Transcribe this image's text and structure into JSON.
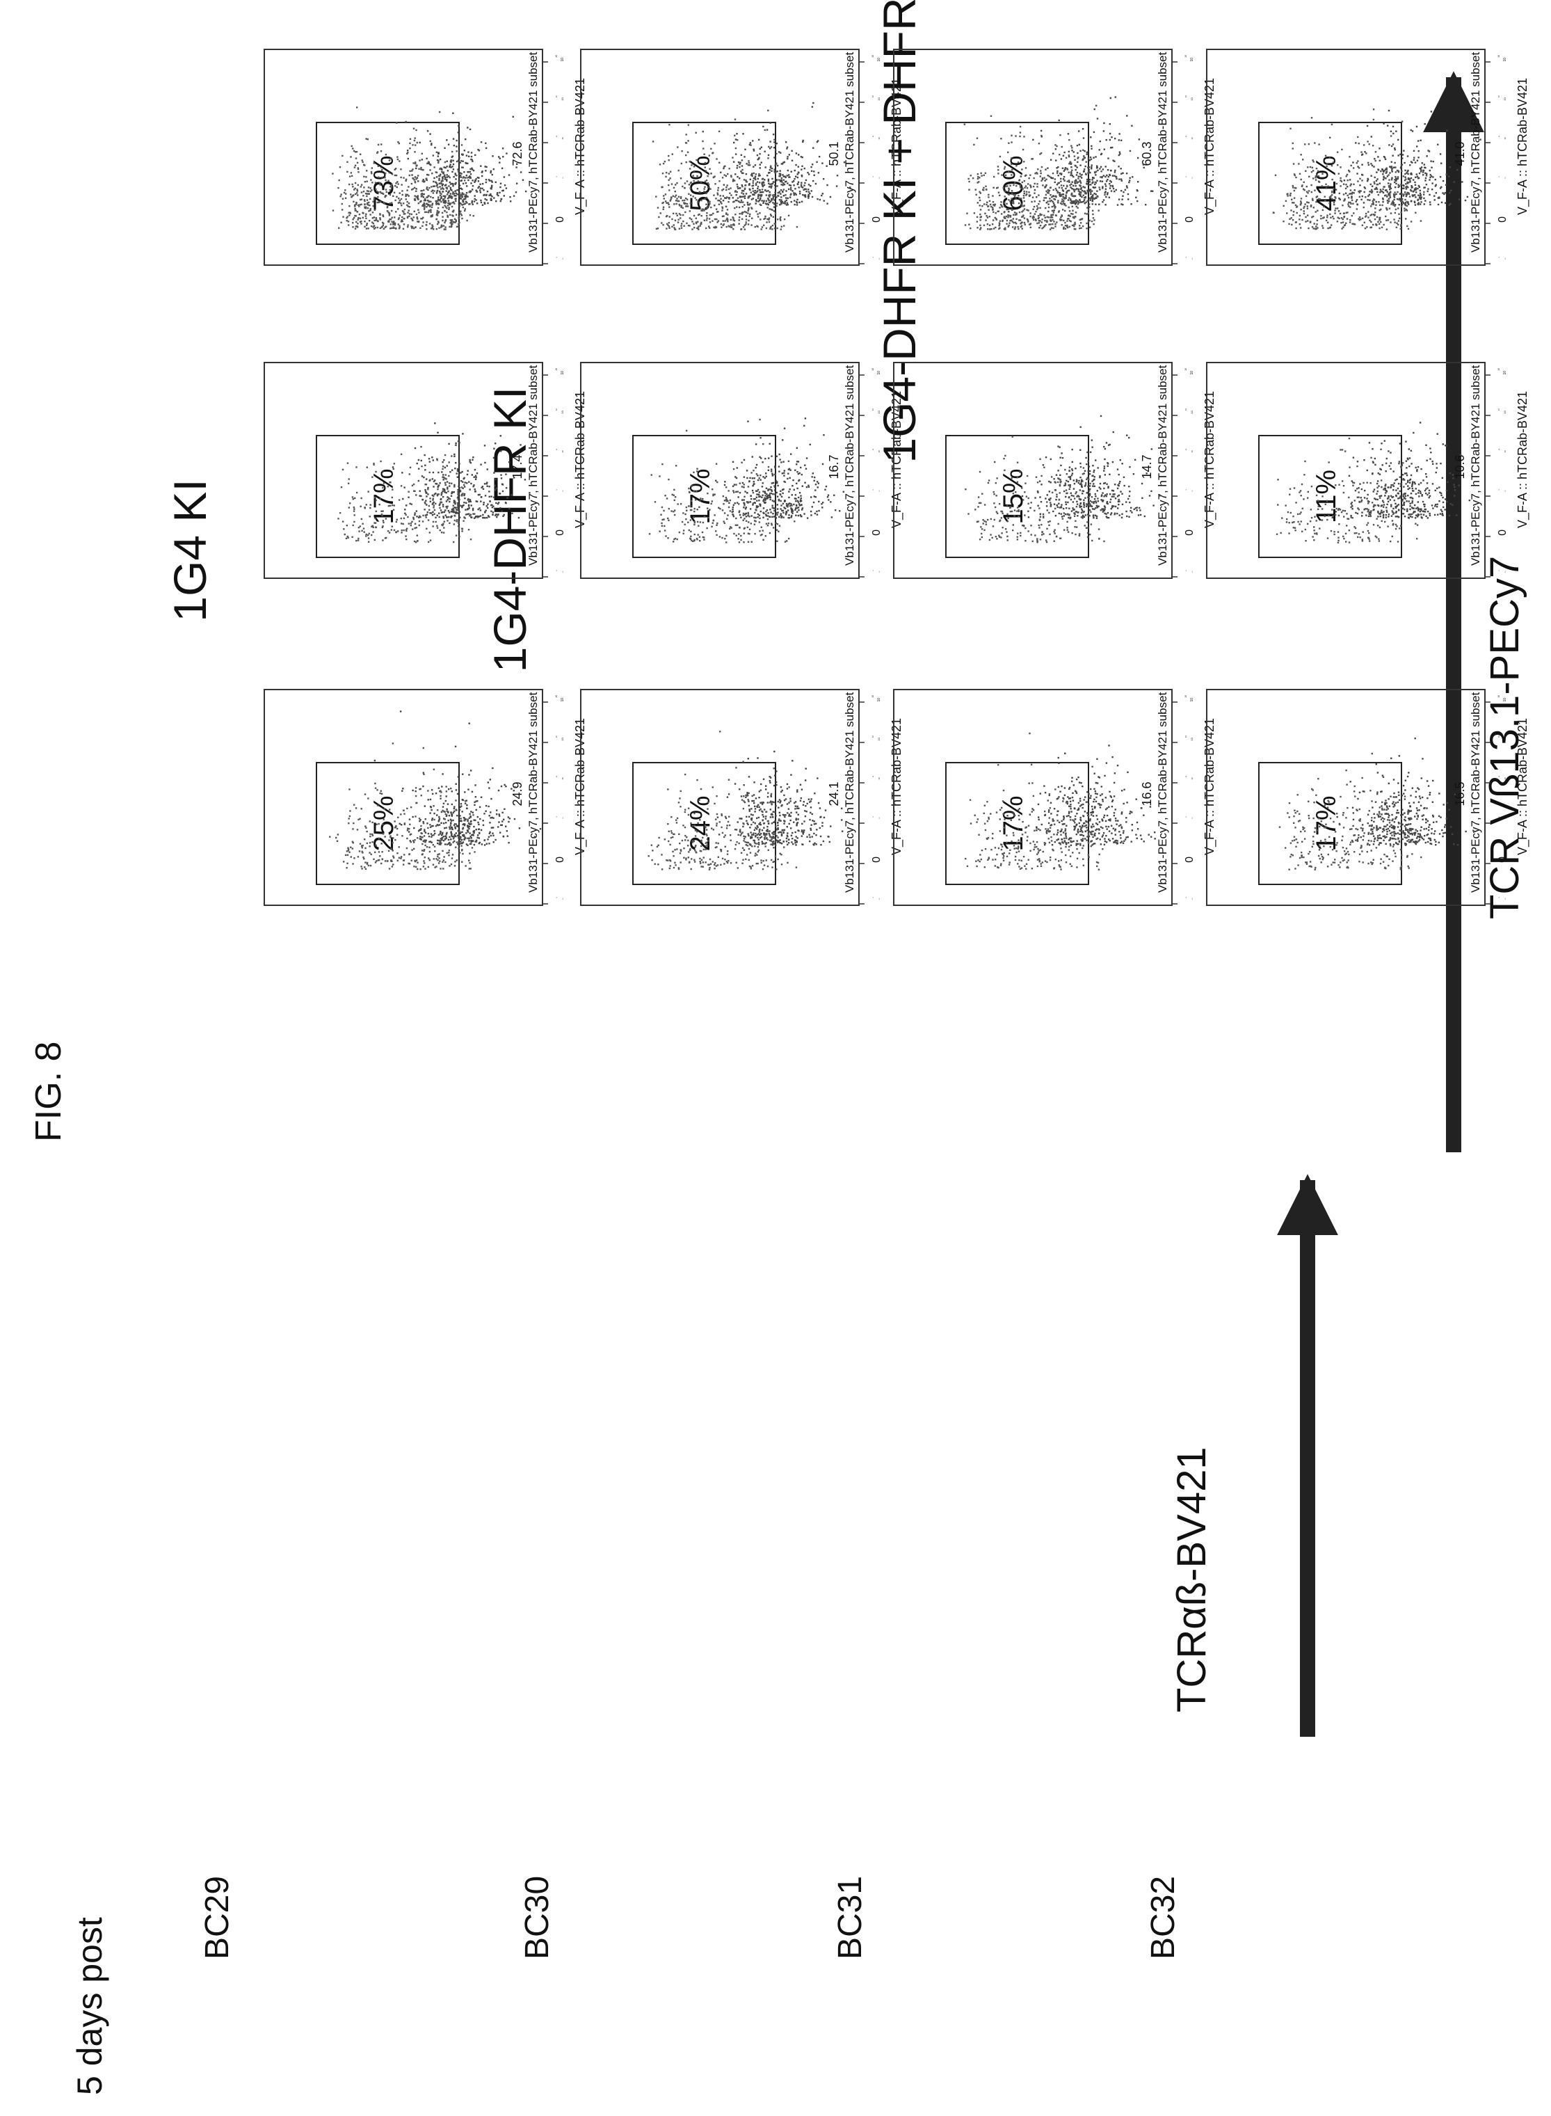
{
  "figure_title": "FIG. 8",
  "time_label": "5 days post",
  "donors": [
    "BC29",
    "BC30",
    "BC31",
    "BC32"
  ],
  "columns": [
    "1G4 KI",
    "1G4-DHFR KI",
    "1G4-DHFR KI + DHFR"
  ],
  "arrow_labels": {
    "left": "TCRαß-BV421",
    "right": "TCR Vß13.1-PECy7"
  },
  "y_axis_label": "V_F-A :: hTCRab-BV421",
  "gate_label": "Vb131-PEcy7, hTCRab-BY421 subset",
  "y_ticks": [
    "10",
    "10",
    "10",
    "10",
    "0",
    "-10"
  ],
  "y_tick_exponents": [
    "5",
    "4",
    "3",
    "2",
    "",
    "2"
  ],
  "y_ticks_short": [
    "10",
    "10",
    "10",
    "10"
  ],
  "y_tick_exponents_short": [
    "5",
    "4",
    "3",
    "2"
  ],
  "chart_data": {
    "type": "scatter",
    "title": "FIG. 8",
    "xlabel": "TCR Vß13.1-PECy7",
    "ylabel": "TCRαß-BV421",
    "categories": [
      "BC29",
      "BC30",
      "BC31",
      "BC32"
    ],
    "series": [
      {
        "name": "1G4 KI",
        "gate_values": [
          24.9,
          24.1,
          16.6,
          16.5
        ],
        "percent_labels": [
          "25%",
          "24%",
          "17%",
          "17%"
        ]
      },
      {
        "name": "1G4-DHFR KI",
        "gate_values": [
          17.4,
          16.7,
          14.7,
          10.6
        ],
        "percent_labels": [
          "17%",
          "17%",
          "15%",
          "11%"
        ]
      },
      {
        "name": "1G4-DHFR KI + DHFR",
        "gate_values": [
          72.6,
          50.1,
          60.3,
          41.0
        ],
        "percent_labels": [
          "73%",
          "50%",
          "60%",
          "41%"
        ]
      }
    ],
    "gate_values_text": [
      [
        "24.9",
        "24.1",
        "16.6",
        "16.5"
      ],
      [
        "17.4",
        "16.7",
        "14.7",
        "10.6"
      ],
      [
        "72.6",
        "50.1",
        "60.3",
        "41.0"
      ]
    ]
  }
}
